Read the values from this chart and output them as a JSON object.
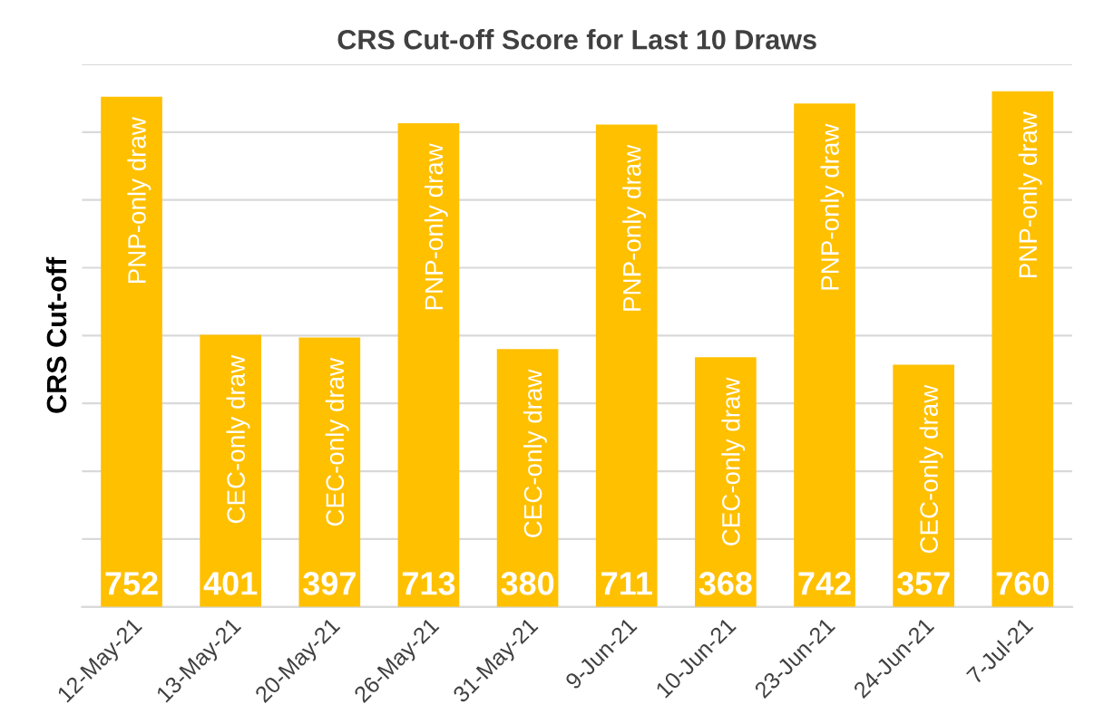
{
  "chart_data": {
    "type": "bar",
    "title": "CRS Cut-off Score for Last 10 Draws",
    "ylabel": "CRS Cut-off",
    "categories": [
      "12-May-21",
      "13-May-21",
      "20-May-21",
      "26-May-21",
      "31-May-21",
      "9-Jun-21",
      "10-Jun-21",
      "23-Jun-21",
      "24-Jun-21",
      "7-Jul-21"
    ],
    "values": [
      752,
      401,
      397,
      713,
      380,
      711,
      368,
      742,
      357,
      760
    ],
    "color": "#ffc000",
    "data_labels": true,
    "grid": "y",
    "tick_labels": "x",
    "ylim": [
      0,
      800
    ],
    "yticks": [
      {
        "value": 0,
        "label": null
      },
      {
        "value": 100,
        "label": null
      },
      {
        "value": 200,
        "label": null
      },
      {
        "value": 300,
        "label": null
      },
      {
        "value": 400,
        "label": null
      },
      {
        "value": 500,
        "label": null
      },
      {
        "value": 600,
        "label": null
      },
      {
        "value": 700,
        "label": null
      },
      {
        "value": 800,
        "label": null
      }
    ],
    "annotations": [
      {
        "text": "PNP-only draw",
        "x": "12-May-21",
        "y": 752
      },
      {
        "text": "CEC-only draw",
        "x": "13-May-21",
        "y": 401
      },
      {
        "text": "CEC-only draw",
        "x": "20-May-21",
        "y": 397
      },
      {
        "text": "PNP-only draw",
        "x": "26-May-21",
        "y": 713
      },
      {
        "text": "CEC-only draw",
        "x": "31-May-21",
        "y": 380
      },
      {
        "text": "PNP-only draw",
        "x": "9-Jun-21",
        "y": 711
      },
      {
        "text": "CEC-only draw",
        "x": "10-Jun-21",
        "y": 368
      },
      {
        "text": "PNP-only draw",
        "x": "23-Jun-21",
        "y": 742
      },
      {
        "text": "CEC-only draw",
        "x": "24-Jun-21",
        "y": 357
      },
      {
        "text": "PNP-only draw",
        "x": "7-Jul-21",
        "y": 760
      }
    ]
  }
}
